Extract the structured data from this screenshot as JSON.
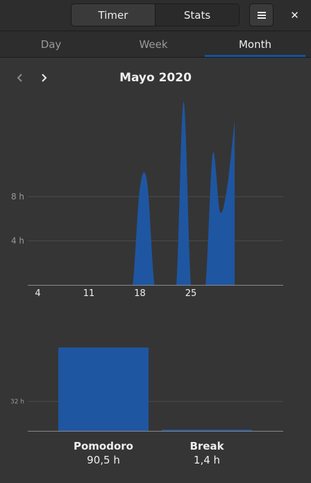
{
  "header": {
    "tabs": [
      "Timer",
      "Stats"
    ],
    "active_tab": "Stats",
    "menu_icon": "hamburger-icon",
    "close_label": "✕"
  },
  "view_tabs": {
    "items": [
      "Day",
      "Week",
      "Month"
    ],
    "active": "Month"
  },
  "period": {
    "title": "Mayo 2020",
    "prev_icon": "chevron-left-icon",
    "next_icon": "chevron-right-icon"
  },
  "chart_data": [
    {
      "type": "area",
      "x": [
        1,
        2,
        3,
        4,
        5,
        6,
        7,
        8,
        9,
        10,
        11,
        12,
        13,
        14,
        15,
        16,
        17,
        18,
        19,
        20,
        21,
        22,
        23,
        24,
        25,
        26,
        27,
        28,
        29,
        30,
        31
      ],
      "y": [
        0,
        0,
        0,
        0,
        0,
        0,
        0,
        0,
        0,
        0,
        0,
        0,
        0,
        0,
        0,
        0,
        0,
        8.8,
        9.3,
        0,
        0,
        0,
        0,
        16.6,
        0,
        0,
        0,
        11.9,
        6.6,
        9.0,
        14.9
      ],
      "y_unit": "h",
      "y_ticks": [
        "4 h",
        "8 h"
      ],
      "x_ticks": [
        "4",
        "11",
        "18",
        "25"
      ],
      "ylim": [
        0,
        17
      ],
      "grid": true,
      "color": "#1f56a1"
    },
    {
      "type": "bar",
      "categories": [
        "Pomodoro",
        "Break"
      ],
      "values": [
        90.5,
        1.4
      ],
      "value_labels": [
        "90,5 h",
        "1,4 h"
      ],
      "y_ticks": [
        "32 h"
      ],
      "ylim": [
        0,
        92
      ],
      "grid": true,
      "color": "#1f56a1"
    }
  ]
}
